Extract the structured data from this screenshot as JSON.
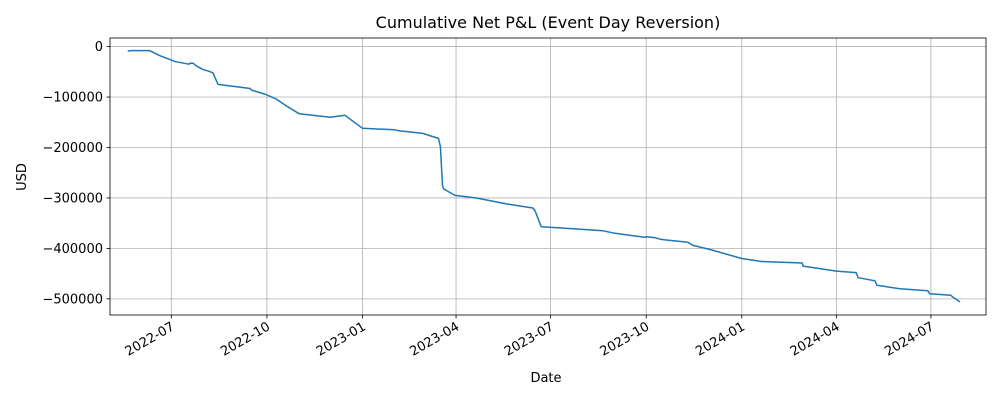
{
  "chart_data": {
    "type": "line",
    "title": "Cumulative Net P&L (Event Day Reversion)",
    "xlabel": "Date",
    "ylabel": "USD",
    "grid": true,
    "x_ticks": [
      "2022-07",
      "2022-10",
      "2023-01",
      "2023-04",
      "2023-07",
      "2023-10",
      "2024-01",
      "2024-04",
      "2024-07"
    ],
    "y_ticks": [
      0,
      -100000,
      -200000,
      -300000,
      -400000,
      -500000
    ],
    "y_tick_labels": [
      "0",
      "−100000",
      "−200000",
      "−300000",
      "−400000",
      "−500000"
    ],
    "xlim": [
      "2022-05-03",
      "2024-08-23"
    ],
    "ylim": [
      -532000,
      17000
    ],
    "colors": {
      "line": "#1f77b4",
      "grid": "#b0b0b0"
    },
    "series": [
      {
        "x": [
          "2022-05-20",
          "2022-05-23",
          "2022-06-10",
          "2022-06-20",
          "2022-07-05",
          "2022-07-18",
          "2022-07-19",
          "2022-07-22",
          "2022-07-25",
          "2022-08-01",
          "2022-08-05",
          "2022-08-10",
          "2022-08-15",
          "2022-09-15",
          "2022-09-16",
          "2022-09-30",
          "2022-10-10",
          "2022-10-20",
          "2022-11-01",
          "2022-12-01",
          "2022-12-15",
          "2023-01-01",
          "2023-02-01",
          "2023-02-05",
          "2023-02-28",
          "2023-03-15",
          "2023-03-17",
          "2023-03-19",
          "2023-03-20",
          "2023-03-31",
          "2023-04-20",
          "2023-05-20",
          "2023-06-14",
          "2023-06-16",
          "2023-06-22",
          "2023-07-30",
          "2023-08-20",
          "2023-09-01",
          "2023-09-30",
          "2023-10-01",
          "2023-10-10",
          "2023-10-15",
          "2023-10-18",
          "2023-11-10",
          "2023-11-15",
          "2023-12-01",
          "2024-01-01",
          "2024-01-20",
          "2024-02-28",
          "2024-02-29",
          "2024-04-01",
          "2024-04-20",
          "2024-04-22",
          "2024-05-05",
          "2024-05-08",
          "2024-05-10",
          "2024-06-01",
          "2024-06-28",
          "2024-06-30",
          "2024-07-20",
          "2024-07-23",
          "2024-07-29"
        ],
        "y": [
          -9000,
          -8000,
          -8000,
          -18000,
          -30000,
          -35000,
          -33000,
          -33000,
          -38000,
          -46000,
          -48000,
          -52000,
          -75000,
          -83000,
          -86000,
          -95000,
          -104000,
          -118000,
          -133000,
          -140000,
          -136000,
          -162000,
          -165000,
          -167000,
          -172000,
          -182000,
          -198000,
          -275000,
          -282000,
          -295000,
          -300000,
          -312000,
          -320000,
          -325000,
          -357000,
          -362000,
          -365000,
          -370000,
          -378000,
          -377000,
          -379000,
          -382000,
          -383000,
          -388000,
          -394000,
          -402000,
          -420000,
          -426000,
          -429000,
          -435000,
          -445000,
          -448000,
          -458000,
          -463000,
          -464000,
          -473000,
          -480000,
          -484000,
          -490000,
          -493000,
          -498000,
          -506000
        ]
      }
    ]
  }
}
